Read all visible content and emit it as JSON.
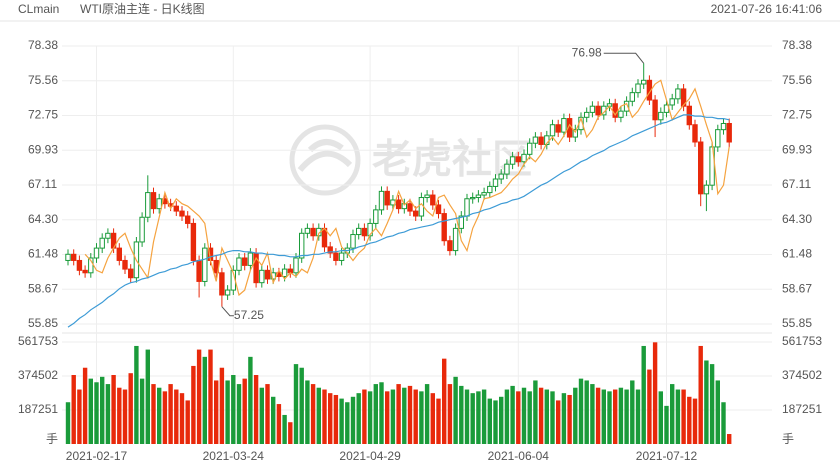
{
  "header": {
    "symbol": "CLmain",
    "name": "WTI原油主连 - 日K线图",
    "time": "2021-07-26 16:41:06"
  },
  "watermark": "老虎社区",
  "chart_data": {
    "type": "candlestick",
    "up_color": "#1a9b3a",
    "down_color": "#e8290b",
    "categories": [
      null,
      null,
      null,
      null,
      null,
      "2021-02-17",
      null,
      null,
      null,
      null,
      null,
      null,
      null,
      null,
      null,
      null,
      null,
      null,
      null,
      null,
      null,
      null,
      null,
      null,
      null,
      null,
      null,
      null,
      null,
      "2021-03-24",
      null,
      null,
      null,
      null,
      null,
      null,
      null,
      null,
      null,
      null,
      null,
      null,
      null,
      null,
      null,
      null,
      null,
      null,
      null,
      null,
      null,
      null,
      null,
      "2021-04-29",
      null,
      null,
      null,
      null,
      null,
      null,
      null,
      null,
      null,
      null,
      null,
      null,
      null,
      null,
      null,
      null,
      null,
      null,
      null,
      null,
      null,
      null,
      null,
      null,
      null,
      "2021-06-04",
      null,
      null,
      null,
      null,
      null,
      null,
      null,
      null,
      null,
      null,
      null,
      null,
      null,
      null,
      null,
      null,
      null,
      null,
      null,
      null,
      null,
      null,
      null,
      null,
      null,
      "2021-07-12",
      null,
      null,
      null,
      null,
      null,
      null,
      null,
      null,
      null,
      null,
      null
    ],
    "open": [
      61.0,
      61.5,
      61.0,
      60.2,
      60.0,
      61.2,
      62.0,
      62.8,
      63.2,
      62.0,
      61.0,
      60.3,
      59.6,
      62.5,
      64.5,
      66.5,
      65.2,
      66.0,
      65.6,
      65.4,
      65.0,
      64.6,
      64.0,
      61.0,
      59.3,
      62.0,
      61.0,
      60.0,
      58.2,
      58.6,
      60.2,
      61.2,
      60.6,
      61.6,
      59.2,
      60.2,
      59.5,
      60.0,
      59.7,
      60.3,
      60.0,
      61.2,
      63.2,
      63.6,
      63.0,
      63.6,
      62.1,
      61.6,
      61.0,
      61.6,
      62.0,
      63.1,
      63.6,
      63.0,
      64.0,
      65.1,
      66.6,
      65.5,
      65.9,
      65.2,
      65.6,
      65.0,
      64.6,
      66.1,
      66.3,
      65.5,
      64.8,
      62.6,
      61.8,
      63.6,
      64.6,
      66.0,
      66.1,
      66.3,
      66.5,
      67.0,
      67.6,
      68.0,
      68.8,
      69.4,
      69.0,
      69.6,
      70.5,
      71.0,
      70.4,
      71.1,
      72.0,
      71.4,
      72.5,
      71.0,
      71.6,
      72.6,
      73.0,
      73.5,
      72.8,
      73.5,
      73.7,
      72.6,
      73.1,
      73.9,
      74.6,
      75.3,
      75.6,
      74.0,
      72.4,
      73.0,
      73.6,
      74.1,
      74.9,
      73.5,
      72.0,
      70.6,
      66.4,
      67.1,
      70.2,
      71.6,
      72.1
    ],
    "high": [
      61.9,
      61.9,
      61.4,
      60.6,
      61.6,
      62.4,
      63.2,
      63.6,
      63.6,
      62.4,
      61.4,
      60.7,
      62.9,
      64.9,
      67.9,
      66.9,
      66.4,
      66.4,
      66.0,
      65.8,
      65.4,
      65.0,
      64.4,
      61.4,
      62.4,
      62.4,
      61.4,
      60.4,
      59.0,
      60.6,
      61.6,
      61.6,
      62.0,
      62.0,
      60.6,
      60.6,
      60.4,
      60.4,
      60.7,
      60.7,
      61.6,
      63.6,
      64.0,
      64.0,
      64.0,
      64.0,
      62.5,
      62.0,
      62.0,
      62.4,
      63.5,
      64.0,
      64.0,
      64.4,
      65.5,
      67.0,
      67.0,
      66.3,
      66.3,
      66.0,
      66.0,
      65.4,
      66.5,
      66.7,
      66.7,
      65.9,
      65.2,
      63.0,
      64.0,
      65.0,
      66.4,
      66.5,
      66.7,
      66.9,
      67.4,
      68.0,
      68.4,
      69.2,
      69.8,
      69.8,
      70.0,
      70.9,
      71.4,
      71.4,
      71.5,
      72.4,
      72.4,
      72.9,
      72.9,
      72.0,
      73.0,
      73.4,
      73.9,
      73.9,
      73.9,
      74.1,
      74.1,
      73.5,
      74.3,
      75.0,
      75.7,
      76.98,
      76.0,
      74.4,
      73.4,
      74.0,
      74.5,
      75.3,
      75.3,
      73.9,
      72.4,
      71.0,
      67.5,
      70.6,
      72.0,
      72.5,
      72.5
    ],
    "low": [
      60.6,
      60.6,
      59.8,
      59.6,
      59.6,
      60.8,
      61.6,
      62.4,
      61.6,
      60.6,
      59.9,
      59.2,
      59.2,
      62.1,
      64.1,
      64.8,
      64.8,
      65.2,
      65.0,
      64.6,
      64.2,
      63.6,
      60.6,
      58.0,
      58.9,
      60.6,
      59.6,
      57.25,
      57.8,
      58.2,
      59.8,
      60.2,
      60.2,
      58.8,
      58.8,
      59.1,
      59.1,
      59.3,
      59.3,
      59.6,
      59.6,
      60.8,
      62.8,
      62.6,
      62.6,
      61.7,
      61.2,
      60.6,
      60.6,
      61.2,
      61.6,
      62.7,
      62.6,
      62.6,
      63.6,
      64.7,
      65.1,
      65.1,
      64.8,
      64.8,
      64.6,
      64.2,
      64.2,
      65.7,
      65.1,
      64.4,
      62.2,
      61.4,
      61.4,
      63.2,
      64.2,
      65.6,
      65.7,
      65.9,
      66.1,
      66.6,
      67.2,
      67.6,
      68.4,
      68.6,
      68.6,
      69.2,
      70.1,
      70.0,
      70.0,
      70.7,
      71.0,
      71.0,
      70.6,
      70.6,
      71.2,
      72.2,
      72.6,
      72.4,
      72.4,
      73.1,
      72.2,
      72.2,
      72.7,
      73.5,
      74.2,
      74.9,
      73.6,
      71.0,
      72.0,
      72.6,
      73.2,
      73.7,
      73.1,
      71.6,
      70.2,
      65.4,
      65.0,
      66.7,
      69.8,
      71.2,
      70.2
    ],
    "close": [
      61.5,
      61.0,
      60.2,
      60.0,
      61.2,
      62.0,
      62.8,
      63.2,
      62.0,
      61.0,
      60.3,
      59.6,
      62.5,
      64.5,
      66.5,
      65.2,
      66.0,
      65.6,
      65.4,
      65.0,
      64.6,
      64.0,
      61.0,
      59.3,
      62.0,
      61.0,
      60.0,
      58.2,
      58.6,
      60.2,
      61.2,
      60.6,
      61.6,
      59.2,
      60.2,
      59.5,
      60.0,
      59.7,
      60.3,
      60.0,
      61.2,
      63.2,
      63.6,
      63.0,
      63.6,
      62.1,
      61.6,
      61.0,
      61.6,
      62.0,
      63.1,
      63.6,
      63.0,
      64.0,
      65.1,
      66.6,
      65.5,
      65.9,
      65.2,
      65.6,
      65.0,
      64.6,
      66.1,
      66.3,
      65.5,
      64.8,
      62.6,
      61.8,
      63.6,
      64.6,
      66.0,
      66.1,
      66.3,
      66.5,
      67.0,
      67.6,
      68.0,
      68.8,
      69.4,
      69.0,
      69.6,
      70.5,
      71.0,
      70.4,
      71.1,
      72.0,
      71.4,
      72.5,
      71.0,
      71.6,
      72.6,
      73.0,
      73.5,
      72.8,
      73.5,
      73.7,
      72.6,
      73.1,
      73.9,
      74.6,
      75.3,
      75.6,
      74.0,
      72.4,
      73.0,
      73.6,
      74.1,
      74.9,
      73.5,
      72.0,
      70.6,
      66.4,
      67.1,
      70.2,
      71.6,
      72.1,
      70.6
    ],
    "ma": [
      {
        "color": "#f5a340",
        "values": [
          null,
          null,
          null,
          61.5,
          61.0,
          60.2,
          60.0,
          61.2,
          62.0,
          62.8,
          63.2,
          62.0,
          61.0,
          60.3,
          59.6,
          62.5,
          64.5,
          66.5,
          65.2,
          66.0,
          65.6,
          65.4,
          65.0,
          64.6,
          64.0,
          61.0,
          59.3,
          62.0,
          61.0,
          60.0,
          58.2,
          58.6,
          60.2,
          61.2,
          60.6,
          61.6,
          59.2,
          60.2,
          59.5,
          60.0,
          59.7,
          60.3,
          60.0,
          61.2,
          63.2,
          63.6,
          63.0,
          63.6,
          62.1,
          61.6,
          61.0,
          61.6,
          62.0,
          63.1,
          63.6,
          63.0,
          64.0,
          65.1,
          66.6,
          65.5,
          65.9,
          65.2,
          65.6,
          65.0,
          64.6,
          66.1,
          66.3,
          65.5,
          64.8,
          62.6,
          61.8,
          63.6,
          64.6,
          66.0,
          66.1,
          66.3,
          66.5,
          67.0,
          67.6,
          68.0,
          68.8,
          69.4,
          69.0,
          69.6,
          70.5,
          71.0,
          70.4,
          71.1,
          72.0,
          71.4,
          72.5,
          71.0,
          71.6,
          72.6,
          73.0,
          73.5,
          72.8,
          73.5,
          73.7,
          72.6,
          73.1,
          73.9,
          74.6,
          75.3,
          75.6,
          74.0,
          72.4,
          73.0,
          73.6,
          74.1,
          74.9,
          73.5,
          72.0,
          70.6,
          66.4,
          67.1,
          70.2
        ]
      },
      {
        "color": "#3d9bd6",
        "values": [
          55.6,
          55.9,
          56.3,
          56.6,
          57.0,
          57.3,
          57.6,
          58.0,
          58.3,
          58.7,
          59.0,
          59.2,
          59.3,
          59.5,
          59.6,
          59.8,
          60.0,
          60.1,
          60.3,
          60.4,
          60.6,
          60.7,
          60.9,
          61.0,
          61.1,
          61.3,
          61.4,
          61.5,
          61.7,
          61.8,
          61.8,
          61.7,
          61.7,
          61.6,
          61.6,
          61.5,
          61.5,
          61.4,
          61.4,
          61.3,
          61.3,
          61.4,
          61.4,
          61.5,
          61.5,
          61.6,
          61.7,
          61.7,
          61.8,
          61.8,
          61.9,
          62.1,
          62.2,
          62.4,
          62.5,
          62.7,
          62.9,
          63.0,
          63.2,
          63.3,
          63.5,
          63.6,
          63.7,
          63.8,
          63.9,
          64.1,
          64.2,
          64.3,
          64.4,
          64.5,
          64.6,
          64.8,
          64.9,
          65.1,
          65.2,
          65.4,
          65.6,
          65.7,
          65.9,
          66.0,
          66.2,
          66.5,
          66.8,
          67.1,
          67.3,
          67.6,
          67.9,
          68.2,
          68.4,
          68.7,
          69.0,
          69.2,
          69.5,
          69.7,
          69.9,
          70.2,
          70.4,
          70.6,
          70.8,
          71.1,
          71.3,
          71.5,
          71.7,
          71.9,
          72.1,
          72.2,
          72.4,
          72.6,
          72.8,
          72.8,
          72.7,
          72.7,
          72.6,
          72.6,
          72.5,
          72.5,
          72.4
        ]
      }
    ],
    "ylim": [
      55.85,
      78.38
    ],
    "yticks": [
      55.85,
      58.67,
      61.48,
      {
        "value": 64.3,
        "label": "64.30"
      },
      67.11,
      69.93,
      72.75,
      75.56,
      78.38
    ],
    "grid": true,
    "volume": {
      "values": [
        230000,
        380000,
        300000,
        420000,
        360000,
        340000,
        370000,
        330000,
        380000,
        310000,
        300000,
        390000,
        540000,
        360000,
        520000,
        330000,
        310000,
        290000,
        330000,
        300000,
        280000,
        240000,
        430000,
        520000,
        480000,
        520000,
        350000,
        420000,
        350000,
        380000,
        330000,
        360000,
        480000,
        380000,
        310000,
        330000,
        260000,
        220000,
        160000,
        120000,
        440000,
        420000,
        350000,
        330000,
        310000,
        300000,
        280000,
        270000,
        250000,
        230000,
        260000,
        280000,
        300000,
        290000,
        330000,
        340000,
        290000,
        300000,
        330000,
        310000,
        320000,
        300000,
        290000,
        330000,
        280000,
        250000,
        470000,
        330000,
        370000,
        320000,
        300000,
        280000,
        290000,
        300000,
        250000,
        240000,
        260000,
        300000,
        320000,
        290000,
        310000,
        290000,
        350000,
        310000,
        300000,
        290000,
        240000,
        280000,
        270000,
        310000,
        360000,
        350000,
        330000,
        310000,
        300000,
        290000,
        300000,
        310000,
        300000,
        350000,
        300000,
        540000,
        410000,
        560000,
        290000,
        210000,
        330000,
        300000,
        300000,
        260000,
        250000,
        540000,
        460000,
        440000,
        350000,
        230000,
        55000
      ],
      "ylim": [
        0,
        561753
      ],
      "yticks": [
        187251,
        374502,
        561753
      ],
      "unit": "手"
    }
  }
}
